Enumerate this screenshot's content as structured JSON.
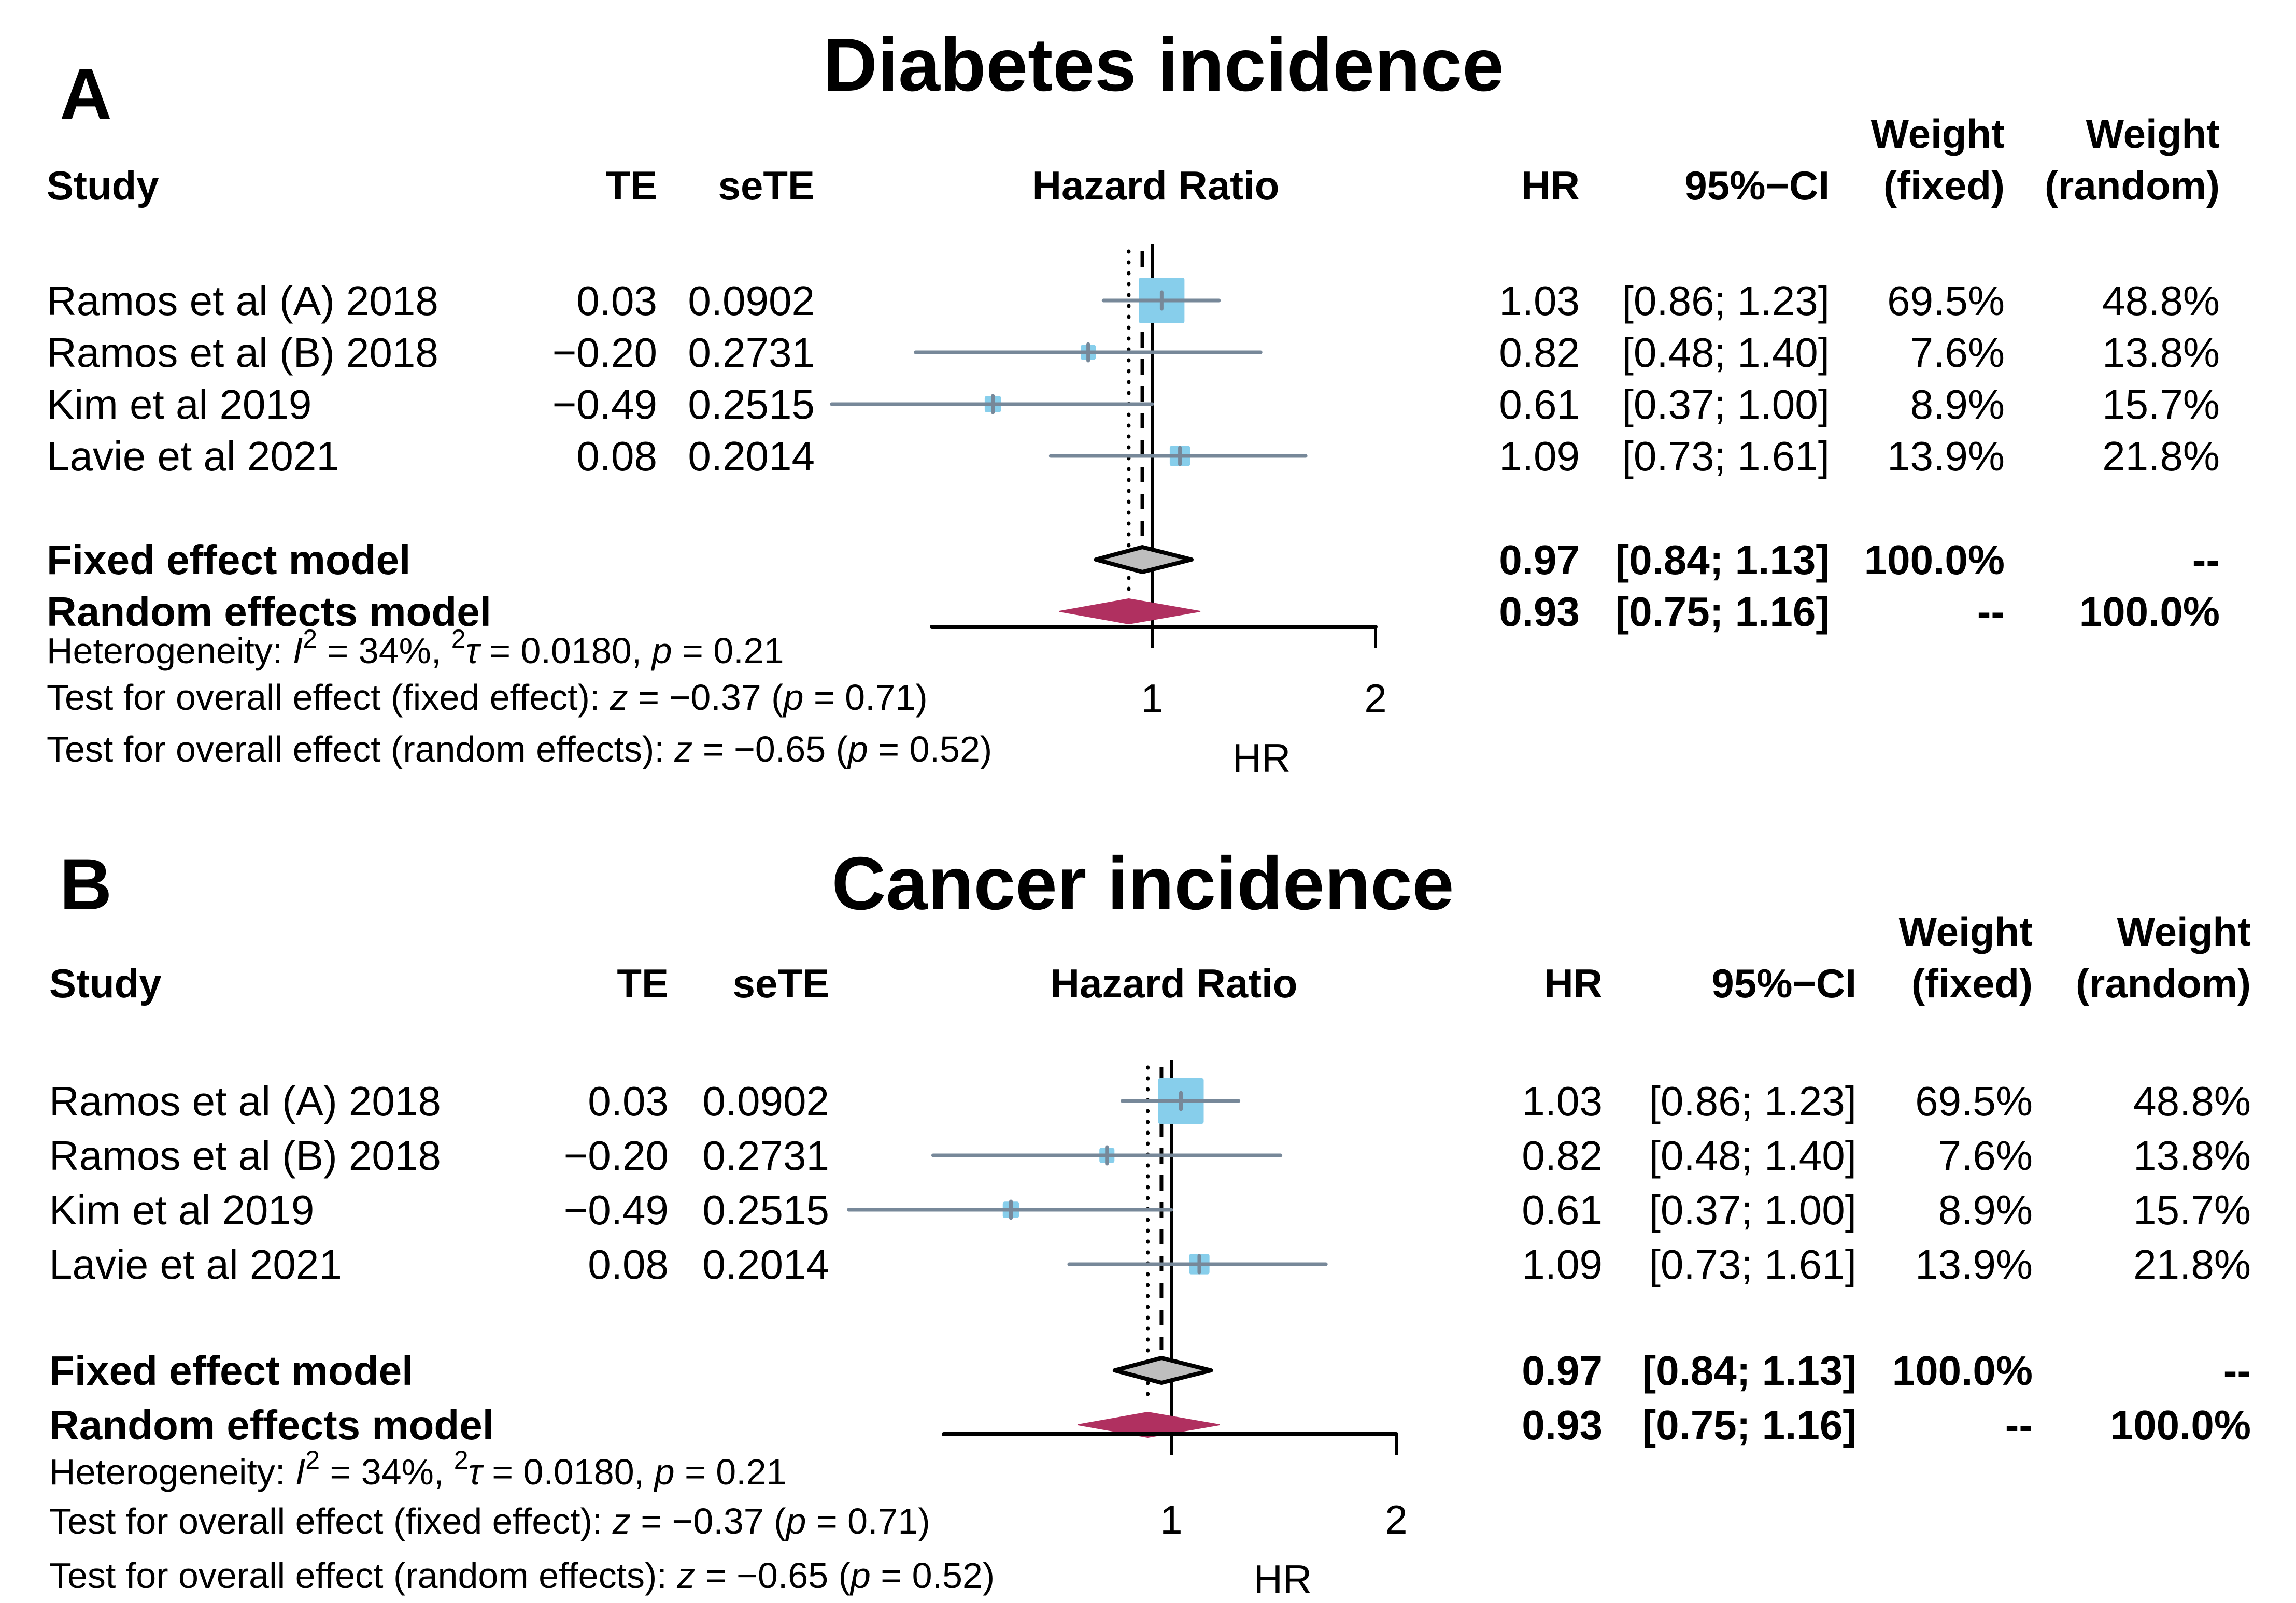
{
  "chart_data": [
    {
      "type": "forest",
      "panel_label": "A",
      "title": "Diabetes incidence",
      "xlabel": "HR",
      "xscale": "log",
      "xlim": [
        0.5,
        2
      ],
      "xticks": [
        1,
        2
      ],
      "xtick_labels": [
        "1",
        "2"
      ],
      "reference_line": 1,
      "columns": {
        "study": "Study",
        "te": "TE",
        "sete": "seTE",
        "plot": "Hazard Ratio",
        "hr": "HR",
        "ci": "95%−CI",
        "weight_fixed": [
          "Weight",
          "(fixed)"
        ],
        "weight_random": [
          "Weight",
          "(random)"
        ]
      },
      "studies": [
        {
          "study": "Ramos et al (A) 2018",
          "te": "0.03",
          "sete": "0.0902",
          "hr": 1.03,
          "lower": 0.86,
          "upper": 1.23,
          "hr_text": "1.03",
          "ci_text": "[0.86; 1.23]",
          "w_fixed": 69.5,
          "w_random": 48.8,
          "w_fixed_text": "69.5%",
          "w_random_text": "48.8%"
        },
        {
          "study": "Ramos et al (B) 2018",
          "te": "−0.20",
          "sete": "0.2731",
          "hr": 0.82,
          "lower": 0.48,
          "upper": 1.4,
          "hr_text": "0.82",
          "ci_text": "[0.48; 1.40]",
          "w_fixed": 7.6,
          "w_random": 13.8,
          "w_fixed_text": "7.6%",
          "w_random_text": "13.8%"
        },
        {
          "study": "Kim et al 2019",
          "te": "−0.49",
          "sete": "0.2515",
          "hr": 0.61,
          "lower": 0.37,
          "upper": 1.0,
          "hr_text": "0.61",
          "ci_text": "[0.37; 1.00]",
          "w_fixed": 8.9,
          "w_random": 15.7,
          "w_fixed_text": "8.9%",
          "w_random_text": "15.7%"
        },
        {
          "study": "Lavie et al 2021",
          "te": "0.08",
          "sete": "0.2014",
          "hr": 1.09,
          "lower": 0.73,
          "upper": 1.61,
          "hr_text": "1.09",
          "ci_text": "[0.73; 1.61]",
          "w_fixed": 13.9,
          "w_random": 21.8,
          "w_fixed_text": "13.9%",
          "w_random_text": "21.8%"
        }
      ],
      "fixed": {
        "label": "Fixed effect model",
        "hr": 0.97,
        "lower": 0.84,
        "upper": 1.13,
        "hr_text": "0.97",
        "ci_text": "[0.84; 1.13]",
        "w_fixed_text": "100.0%",
        "w_random_text": "--"
      },
      "random": {
        "label": "Random effects model",
        "hr": 0.93,
        "lower": 0.75,
        "upper": 1.16,
        "hr_text": "0.93",
        "ci_text": "[0.75; 1.16]",
        "w_fixed_text": "--",
        "w_random_text": "100.0%"
      },
      "heterogeneity": {
        "prefix": "Heterogeneity: ",
        "i2_label": "I",
        "i2_value": " = 34%,  ",
        "tau2_label": "τ",
        "tau2_value": " = 0.0180, ",
        "p_label": "p",
        "p_value": " = 0.21"
      },
      "test_fixed": {
        "prefix": "Test for overall effect (fixed effect): ",
        "z_label": "z",
        "z_value": " = −0.37 (",
        "p_label": "p",
        "p_value": " = 0.71)"
      },
      "test_random": {
        "prefix": "Test for overall effect (random effects): ",
        "z_label": "z",
        "z_value": " = −0.65 (",
        "p_label": "p",
        "p_value": " = 0.52)"
      }
    },
    {
      "type": "forest",
      "panel_label": "B",
      "title": "Cancer incidence",
      "xlabel": "HR",
      "xscale": "log",
      "xlim": [
        0.5,
        2
      ],
      "xticks": [
        1,
        2
      ],
      "xtick_labels": [
        "1",
        "2"
      ],
      "reference_line": 1,
      "columns": {
        "study": "Study",
        "te": "TE",
        "sete": "seTE",
        "plot": "Hazard Ratio",
        "hr": "HR",
        "ci": "95%−CI",
        "weight_fixed": [
          "Weight",
          "(fixed)"
        ],
        "weight_random": [
          "Weight",
          "(random)"
        ]
      },
      "studies": [
        {
          "study": "Ramos et al (A) 2018",
          "te": "0.03",
          "sete": "0.0902",
          "hr": 1.03,
          "lower": 0.86,
          "upper": 1.23,
          "hr_text": "1.03",
          "ci_text": "[0.86; 1.23]",
          "w_fixed": 69.5,
          "w_random": 48.8,
          "w_fixed_text": "69.5%",
          "w_random_text": "48.8%"
        },
        {
          "study": "Ramos et al (B) 2018",
          "te": "−0.20",
          "sete": "0.2731",
          "hr": 0.82,
          "lower": 0.48,
          "upper": 1.4,
          "hr_text": "0.82",
          "ci_text": "[0.48; 1.40]",
          "w_fixed": 7.6,
          "w_random": 13.8,
          "w_fixed_text": "7.6%",
          "w_random_text": "13.8%"
        },
        {
          "study": "Kim et al 2019",
          "te": "−0.49",
          "sete": "0.2515",
          "hr": 0.61,
          "lower": 0.37,
          "upper": 1.0,
          "hr_text": "0.61",
          "ci_text": "[0.37; 1.00]",
          "w_fixed": 8.9,
          "w_random": 15.7,
          "w_fixed_text": "8.9%",
          "w_random_text": "15.7%"
        },
        {
          "study": "Lavie et al 2021",
          "te": "0.08",
          "sete": "0.2014",
          "hr": 1.09,
          "lower": 0.73,
          "upper": 1.61,
          "hr_text": "1.09",
          "ci_text": "[0.73; 1.61]",
          "w_fixed": 13.9,
          "w_random": 21.8,
          "w_fixed_text": "13.9%",
          "w_random_text": "21.8%"
        }
      ],
      "fixed": {
        "label": "Fixed effect model",
        "hr": 0.97,
        "lower": 0.84,
        "upper": 1.13,
        "hr_text": "0.97",
        "ci_text": "[0.84; 1.13]",
        "w_fixed_text": "100.0%",
        "w_random_text": "--"
      },
      "random": {
        "label": "Random effects model",
        "hr": 0.93,
        "lower": 0.75,
        "upper": 1.16,
        "hr_text": "0.93",
        "ci_text": "[0.75; 1.16]",
        "w_fixed_text": "--",
        "w_random_text": "100.0%"
      },
      "heterogeneity": {
        "prefix": "Heterogeneity: ",
        "i2_label": "I",
        "i2_value": " = 34%,  ",
        "tau2_label": "τ",
        "tau2_value": " = 0.0180, ",
        "p_label": "p",
        "p_value": " = 0.21"
      },
      "test_fixed": {
        "prefix": "Test for overall effect (fixed effect): ",
        "z_label": "z",
        "z_value": " = −0.37 (",
        "p_label": "p",
        "p_value": " = 0.71)"
      },
      "test_random": {
        "prefix": "Test for overall effect (random effects): ",
        "z_label": "z",
        "z_value": " = −0.65 (",
        "p_label": "p",
        "p_value": " = 0.52)"
      }
    }
  ],
  "colors": {
    "study_square": "#87CEEB",
    "ci_line": "#778899",
    "fixed_diamond": "#BEBEBE",
    "random_diamond": "#B03060",
    "axis": "#000000"
  }
}
